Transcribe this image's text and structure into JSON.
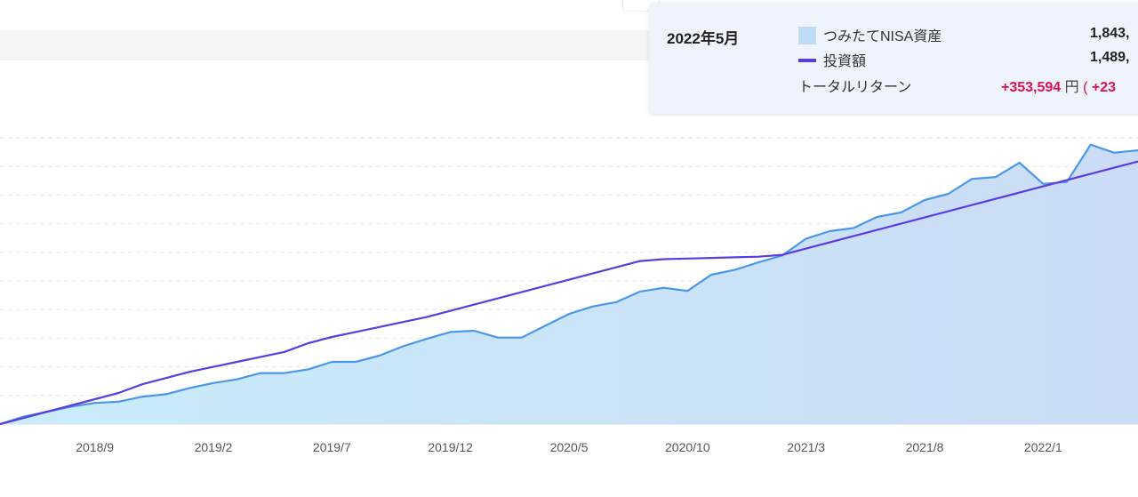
{
  "tooltip": {
    "date": "2022年5月",
    "legend_area": "つみたてNISA資産",
    "legend_line": "投資額",
    "asset_value": "1,843,",
    "invest_value": "1,489,",
    "return_label": "トータルリターン",
    "return_amount": "+353,594",
    "return_unit": "円",
    "return_paren": "(",
    "return_pct": "+23"
  },
  "chart_data": {
    "type": "area",
    "title": "",
    "xlabel": "",
    "ylabel": "",
    "x_tick_labels": [
      "2018/9",
      "2019/2",
      "2019/7",
      "2019/12",
      "2020/5",
      "2020/10",
      "2021/3",
      "2021/8",
      "2022/1"
    ],
    "x_start": "2018/5",
    "x_end": "2022/5",
    "y_axis_labels_visible": false,
    "grid": "horizontal dashed",
    "series": [
      {
        "name": "つみたてNISA資産",
        "kind": "area",
        "color": "#4a90e2",
        "fill": "#c4e6f7",
        "values": [
          0.0,
          0.12,
          0.2,
          0.28,
          0.34,
          0.36,
          0.44,
          0.48,
          0.58,
          0.66,
          0.72,
          0.82,
          0.82,
          0.88,
          1.0,
          1.0,
          1.1,
          1.25,
          1.37,
          1.48,
          1.5,
          1.39,
          1.39,
          1.58,
          1.77,
          1.89,
          1.96,
          2.13,
          2.19,
          2.14,
          2.4,
          2.48,
          2.6,
          2.71,
          2.98,
          3.1,
          3.15,
          3.33,
          3.4,
          3.6,
          3.7,
          3.94,
          3.97,
          4.2,
          3.86,
          3.89,
          4.49,
          4.36,
          4.4
        ]
      },
      {
        "name": "投資額",
        "kind": "line",
        "color": "#5b3ce3",
        "values": [
          0.0,
          0.1,
          0.2,
          0.3,
          0.4,
          0.5,
          0.64,
          0.74,
          0.84,
          0.92,
          1.0,
          1.08,
          1.16,
          1.3,
          1.4,
          1.48,
          1.56,
          1.64,
          1.72,
          1.82,
          1.92,
          2.02,
          2.12,
          2.22,
          2.32,
          2.42,
          2.52,
          2.62,
          2.65,
          2.66,
          2.67,
          2.68,
          2.69,
          2.72,
          2.82,
          2.92,
          3.02,
          3.12,
          3.22,
          3.32,
          3.42,
          3.52,
          3.62,
          3.72,
          3.82,
          3.92,
          4.02,
          4.12,
          4.22
        ]
      }
    ]
  }
}
